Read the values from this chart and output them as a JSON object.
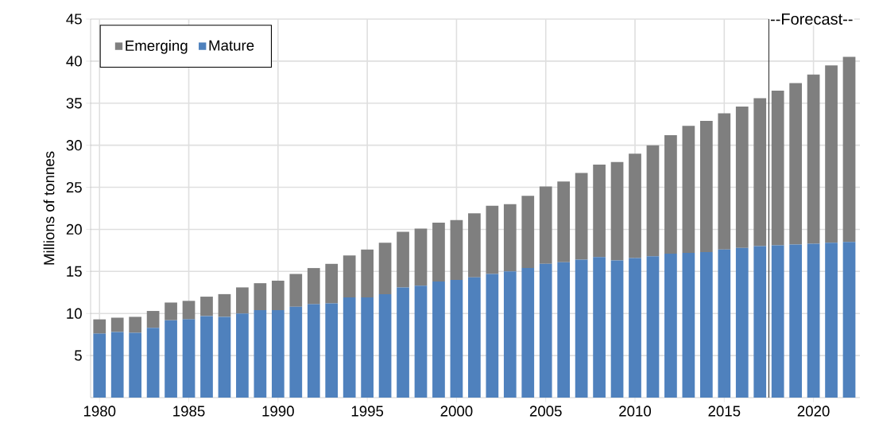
{
  "chart_data": {
    "type": "bar",
    "stacked": true,
    "ylabel": "Millions of tonnes",
    "x": [
      1980,
      1981,
      1982,
      1983,
      1984,
      1985,
      1986,
      1987,
      1988,
      1989,
      1990,
      1991,
      1992,
      1993,
      1994,
      1995,
      1996,
      1997,
      1998,
      1999,
      2000,
      2001,
      2002,
      2003,
      2004,
      2005,
      2006,
      2007,
      2008,
      2009,
      2010,
      2011,
      2012,
      2013,
      2014,
      2015,
      2016,
      2017,
      2018,
      2019,
      2020,
      2021,
      2022
    ],
    "series": [
      {
        "name": "Mature",
        "color": "#4f81bd",
        "values": [
          7.6,
          7.8,
          7.7,
          8.3,
          9.2,
          9.3,
          9.7,
          9.6,
          10.0,
          10.4,
          10.4,
          10.8,
          11.1,
          11.2,
          11.9,
          11.9,
          12.3,
          13.1,
          13.3,
          13.8,
          14.0,
          14.3,
          14.7,
          15.0,
          15.4,
          15.9,
          16.1,
          16.4,
          16.7,
          16.3,
          16.6,
          16.8,
          17.1,
          17.2,
          17.3,
          17.6,
          17.8,
          18.0,
          18.1,
          18.2,
          18.3,
          18.4,
          18.5
        ]
      },
      {
        "name": "Emerging",
        "color": "#7f7f7f",
        "values": [
          1.7,
          1.7,
          1.9,
          2.0,
          2.1,
          2.2,
          2.3,
          2.7,
          3.1,
          3.2,
          3.5,
          3.9,
          4.3,
          4.7,
          5.0,
          5.7,
          6.1,
          6.6,
          6.8,
          7.0,
          7.1,
          7.6,
          8.1,
          8.0,
          8.6,
          9.2,
          9.6,
          10.3,
          11.0,
          11.7,
          12.4,
          13.2,
          14.1,
          15.1,
          15.6,
          16.2,
          16.8,
          17.6,
          18.4,
          19.2,
          20.1,
          21.1,
          22.0
        ]
      }
    ],
    "xlim": [
      1979.5,
      2022.6
    ],
    "xticks": [
      1980,
      1985,
      1990,
      1995,
      2000,
      2005,
      2010,
      2015,
      2020
    ],
    "ylim": [
      0,
      45
    ],
    "yticks": [
      5,
      10,
      15,
      20,
      25,
      30,
      35,
      40,
      45
    ],
    "ref_lines": [
      {
        "axis": "x",
        "value": 2017.5,
        "label": "--Forecast--",
        "color": "#404040"
      }
    ],
    "grid": true,
    "legend": "top left"
  }
}
